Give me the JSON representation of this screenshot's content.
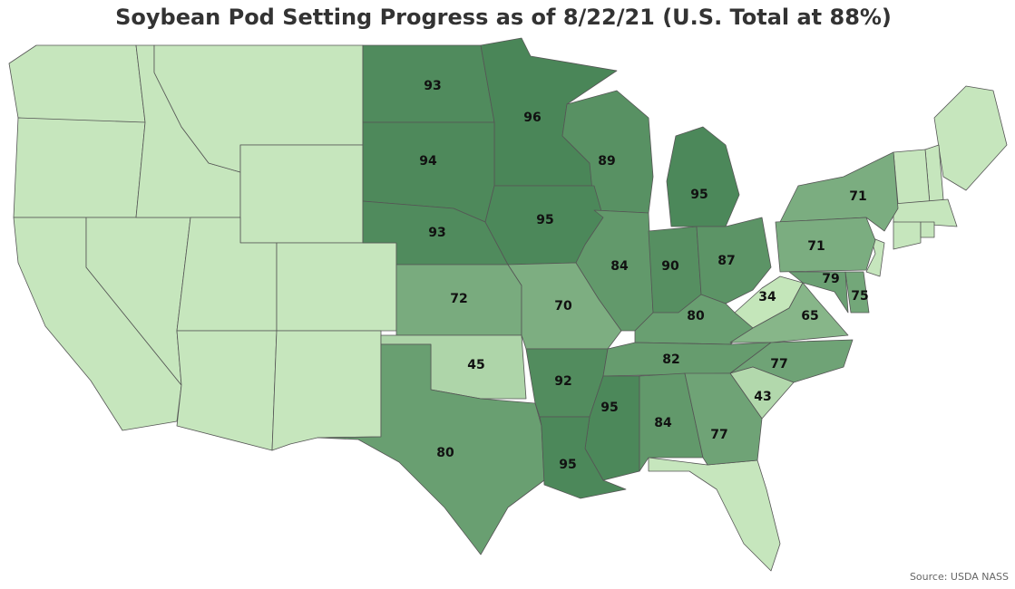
{
  "title": "Soybean Pod Setting Progress as of 8/22/21 (U.S. Total at 88%)",
  "source": "Source: USDA NASS",
  "map": {
    "regions": [
      {
        "value": 93
      },
      {
        "value": 96
      },
      {
        "value": 94
      },
      {
        "value": 89
      },
      {
        "value": 93
      },
      {
        "value": 95
      },
      {
        "value": 95
      },
      {
        "value": 71
      },
      {
        "value": 72
      },
      {
        "value": 70
      },
      {
        "value": 84
      },
      {
        "value": 90
      },
      {
        "value": 87
      },
      {
        "value": 71
      },
      {
        "value": 34
      },
      {
        "value": 79
      },
      {
        "value": 75
      },
      {
        "value": 80
      },
      {
        "value": 65
      },
      {
        "value": 45
      },
      {
        "value": 92
      },
      {
        "value": 82
      },
      {
        "value": 77
      },
      {
        "value": 43
      },
      {
        "value": 95
      },
      {
        "value": 84
      },
      {
        "value": 77
      },
      {
        "value": 80
      },
      {
        "value": 95
      }
    ]
  }
}
